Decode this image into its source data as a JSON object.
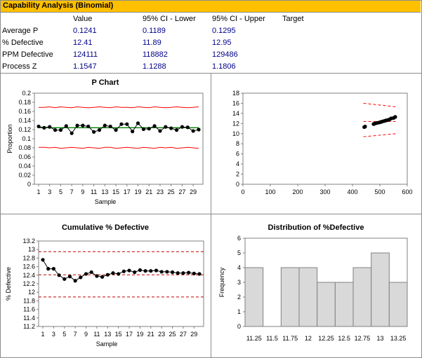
{
  "title": "Capability Analysis (Binomial)",
  "table": {
    "headers": [
      "Value",
      "95% CI - Lower",
      "95% CI - Upper",
      "Target"
    ],
    "rows": [
      {
        "label": "Average P",
        "value": "0.1241",
        "lower": "0.1189",
        "upper": "0.1295"
      },
      {
        "label": "% Defective",
        "value": "12.41",
        "lower": "11.89",
        "upper": "12.95"
      },
      {
        "label": "PPM Defective",
        "value": "124111",
        "lower": "118882",
        "upper": "129486"
      },
      {
        "label": "Process Z",
        "value": "1.1547",
        "lower": "1.1288",
        "upper": "1.1806"
      }
    ]
  },
  "colors": {
    "title_bar": "#ffc000",
    "values": "#00008b",
    "center_line": "#008000",
    "limits": "#ff0000",
    "bars": "#d9d9d9"
  },
  "chart_data": [
    {
      "type": "line",
      "title": "P Chart",
      "xlabel": "Sample",
      "ylabel": "Proportion",
      "ylim": [
        0,
        0.2
      ],
      "yticks": [
        "0",
        "0.02",
        "0.04",
        "0.06",
        "0.08",
        "0.1",
        "0.12",
        "0.14",
        "0.16",
        "0.18",
        "0.2"
      ],
      "xticks": [
        "1",
        "3",
        "5",
        "7",
        "9",
        "11",
        "13",
        "15",
        "17",
        "19",
        "21",
        "23",
        "25",
        "27",
        "29"
      ],
      "x": [
        1,
        2,
        3,
        4,
        5,
        6,
        7,
        8,
        9,
        10,
        11,
        12,
        13,
        14,
        15,
        16,
        17,
        18,
        19,
        20,
        21,
        22,
        23,
        24,
        25,
        26,
        27,
        28,
        29,
        30
      ],
      "values": [
        0.127,
        0.124,
        0.126,
        0.119,
        0.119,
        0.128,
        0.112,
        0.129,
        0.129,
        0.127,
        0.115,
        0.119,
        0.129,
        0.127,
        0.119,
        0.132,
        0.132,
        0.116,
        0.134,
        0.121,
        0.122,
        0.128,
        0.117,
        0.126,
        0.123,
        0.119,
        0.126,
        0.125,
        0.117,
        0.12
      ],
      "center": 0.1241,
      "ucl": [
        0.169,
        0.169,
        0.17,
        0.168,
        0.17,
        0.169,
        0.168,
        0.17,
        0.169,
        0.168,
        0.169,
        0.17,
        0.169,
        0.168,
        0.17,
        0.169,
        0.169,
        0.168,
        0.17,
        0.169,
        0.168,
        0.17,
        0.169,
        0.168,
        0.169,
        0.17,
        0.169,
        0.168,
        0.169,
        0.17
      ],
      "lcl": [
        0.081,
        0.081,
        0.08,
        0.081,
        0.079,
        0.08,
        0.081,
        0.08,
        0.079,
        0.081,
        0.08,
        0.079,
        0.081,
        0.081,
        0.079,
        0.08,
        0.081,
        0.08,
        0.079,
        0.081,
        0.08,
        0.079,
        0.081,
        0.08,
        0.081,
        0.079,
        0.08,
        0.081,
        0.08,
        0.079
      ],
      "grid": false
    },
    {
      "type": "scatter",
      "title": "",
      "xlim": [
        0,
        600
      ],
      "ylim": [
        0,
        18
      ],
      "xticks": [
        "0",
        "100",
        "200",
        "300",
        "400",
        "500",
        "600"
      ],
      "yticks": [
        "0",
        "2",
        "4",
        "6",
        "8",
        "10",
        "12",
        "14",
        "16",
        "18"
      ],
      "x": [
        443,
        446,
        477,
        482,
        489,
        497,
        503,
        509,
        516,
        522,
        529,
        535,
        541,
        550,
        556
      ],
      "values": [
        11.3,
        11.4,
        11.9,
        12.0,
        12.1,
        12.2,
        12.3,
        12.4,
        12.5,
        12.6,
        12.7,
        12.8,
        13.0,
        13.1,
        13.3
      ],
      "center": 12.41,
      "upper_limit": {
        "x": [
          440,
          560
        ],
        "values": [
          16.0,
          15.3
        ]
      },
      "lower_limit": {
        "x": [
          440,
          560
        ],
        "values": [
          9.4,
          10.0
        ]
      },
      "grid": false
    },
    {
      "type": "line",
      "title": "Cumulative % Defective",
      "xlabel": "Sample",
      "ylabel": "% Defective",
      "ylim": [
        11.2,
        13.2
      ],
      "yticks": [
        "11.2",
        "11.4",
        "11.6",
        "11.8",
        "12",
        "12.2",
        "12.4",
        "12.6",
        "12.8",
        "13",
        "13.2"
      ],
      "xticks": [
        "1",
        "3",
        "5",
        "7",
        "9",
        "11",
        "13",
        "15",
        "17",
        "19",
        "21",
        "23",
        "25",
        "27",
        "29"
      ],
      "x": [
        1,
        2,
        3,
        4,
        5,
        6,
        7,
        8,
        9,
        10,
        11,
        12,
        13,
        14,
        15,
        16,
        17,
        18,
        19,
        20,
        21,
        22,
        23,
        24,
        25,
        26,
        27,
        28,
        29,
        30
      ],
      "values": [
        12.76,
        12.55,
        12.55,
        12.4,
        12.31,
        12.37,
        12.27,
        12.35,
        12.43,
        12.47,
        12.38,
        12.36,
        12.41,
        12.45,
        12.43,
        12.49,
        12.51,
        12.47,
        12.52,
        12.5,
        12.5,
        12.51,
        12.48,
        12.48,
        12.47,
        12.45,
        12.45,
        12.46,
        12.44,
        12.43
      ],
      "center": 12.41,
      "upper_limit": 12.95,
      "lower_limit": 11.89,
      "grid": false
    },
    {
      "type": "bar",
      "title": "Distribution of %Defective",
      "ylabel": "Frequency",
      "ylim": [
        0,
        6
      ],
      "yticks": [
        "0",
        "1",
        "2",
        "3",
        "4",
        "5",
        "6"
      ],
      "categories": [
        "11.25",
        "11.5",
        "11.75",
        "12",
        "12.25",
        "12.5",
        "12.75",
        "13",
        "13.25"
      ],
      "values": [
        4,
        0,
        4,
        4,
        3,
        3,
        4,
        5,
        3
      ],
      "grid": false
    }
  ]
}
